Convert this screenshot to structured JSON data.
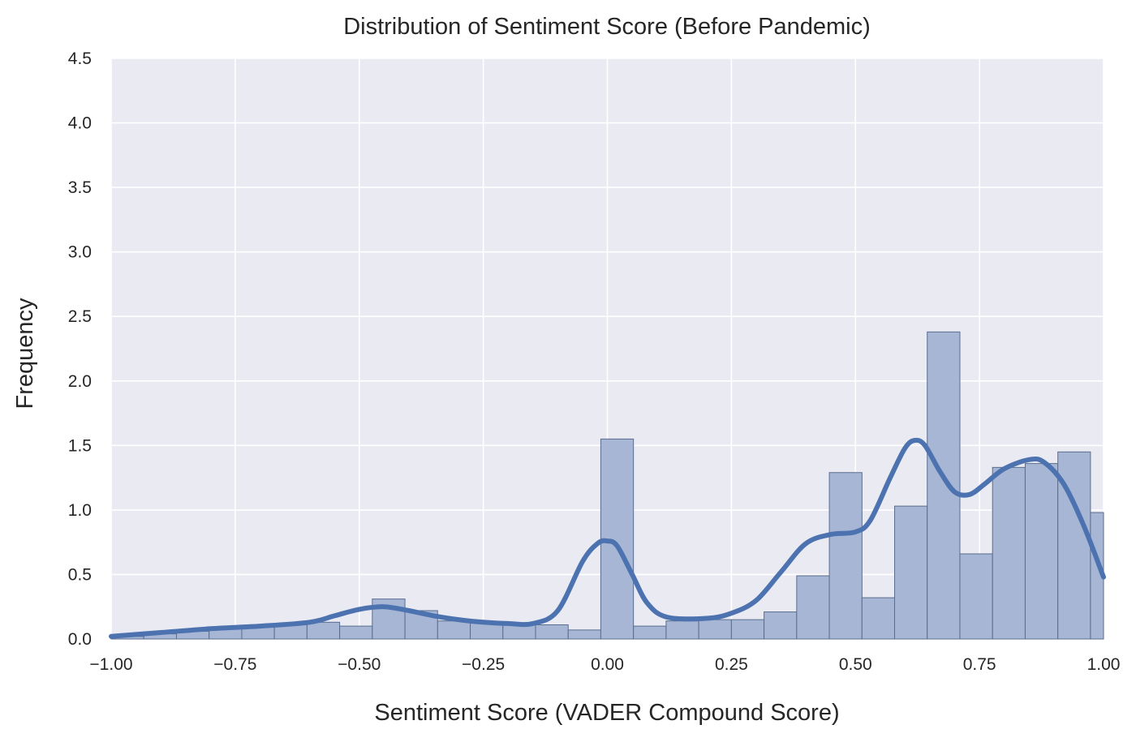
{
  "chart_data": {
    "type": "bar",
    "title": "Distribution of Sentiment Score (Before Pandemic)",
    "xlabel": "Sentiment Score (VADER Compound Score)",
    "ylabel": "Frequency",
    "xlim": [
      -1.0,
      1.0
    ],
    "ylim": [
      0,
      4.5
    ],
    "grid": true,
    "xticks": [
      -1.0,
      -0.75,
      -0.5,
      -0.25,
      0.0,
      0.25,
      0.5,
      0.75,
      1.0
    ],
    "xtick_labels": [
      "−1.00",
      "−0.75",
      "−0.50",
      "−0.25",
      "0.00",
      "0.25",
      "0.50",
      "0.75",
      "1.00"
    ],
    "yticks": [
      0.0,
      0.5,
      1.0,
      1.5,
      2.0,
      2.5,
      3.0,
      3.5,
      4.0,
      4.5
    ],
    "ytick_labels": [
      "0.0",
      "0.5",
      "1.0",
      "1.5",
      "2.0",
      "2.5",
      "3.0",
      "3.5",
      "4.0",
      "4.5"
    ],
    "histogram": {
      "bin_edges": [
        -1.0,
        -0.9342,
        -0.8684,
        -0.8026,
        -0.7368,
        -0.6711,
        -0.6053,
        -0.5395,
        -0.4737,
        -0.4079,
        -0.3421,
        -0.2763,
        -0.2105,
        -0.1447,
        -0.0789,
        -0.0132,
        0.0526,
        0.1184,
        0.1842,
        0.25,
        0.3158,
        0.3816,
        0.4474,
        0.5132,
        0.5789,
        0.6447,
        0.7105,
        0.7763,
        0.8421,
        0.9079,
        0.9737
      ],
      "values": [
        0.02,
        0.04,
        0.06,
        0.08,
        0.1,
        0.11,
        0.13,
        0.1,
        0.31,
        0.22,
        0.14,
        0.13,
        0.12,
        0.11,
        0.07,
        1.55,
        0.1,
        0.14,
        0.15,
        0.15,
        0.21,
        0.49,
        1.29,
        0.32,
        1.03,
        2.38,
        0.66,
        1.33,
        1.36,
        1.45,
        0.98
      ],
      "color": "#a6b6d4",
      "edge_color": "#5a6d8f"
    },
    "kde": {
      "x": [
        -1.0,
        -0.9,
        -0.8,
        -0.7,
        -0.6,
        -0.55,
        -0.5,
        -0.45,
        -0.4,
        -0.35,
        -0.3,
        -0.25,
        -0.2,
        -0.15,
        -0.1,
        -0.05,
        -0.02,
        0.0,
        0.02,
        0.05,
        0.08,
        0.12,
        0.2,
        0.25,
        0.3,
        0.35,
        0.4,
        0.45,
        0.5,
        0.53,
        0.57,
        0.6,
        0.62,
        0.64,
        0.67,
        0.7,
        0.73,
        0.76,
        0.8,
        0.85,
        0.88,
        0.92,
        0.96,
        1.0
      ],
      "y": [
        0.02,
        0.05,
        0.08,
        0.1,
        0.13,
        0.18,
        0.23,
        0.25,
        0.22,
        0.18,
        0.15,
        0.13,
        0.12,
        0.12,
        0.22,
        0.6,
        0.74,
        0.76,
        0.72,
        0.5,
        0.28,
        0.17,
        0.16,
        0.2,
        0.3,
        0.52,
        0.74,
        0.81,
        0.83,
        0.92,
        1.25,
        1.48,
        1.54,
        1.5,
        1.3,
        1.14,
        1.12,
        1.2,
        1.32,
        1.39,
        1.37,
        1.2,
        0.88,
        0.48
      ],
      "color": "#4c72b0"
    }
  }
}
